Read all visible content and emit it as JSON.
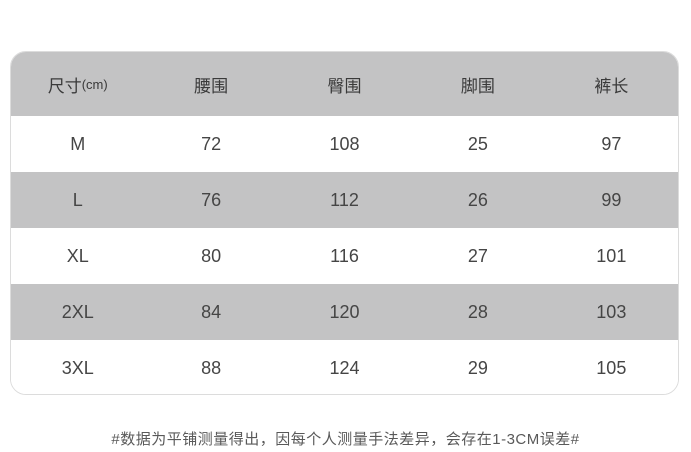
{
  "table": {
    "header": {
      "size_label": "尺寸",
      "size_unit": "(cm)",
      "cols": [
        "腰围",
        "臀围",
        "脚围",
        "裤长"
      ]
    },
    "rows": [
      {
        "size": "M",
        "waist": "72",
        "hip": "108",
        "leg": "25",
        "length": "97"
      },
      {
        "size": "L",
        "waist": "76",
        "hip": "112",
        "leg": "26",
        "length": "99"
      },
      {
        "size": "XL",
        "waist": "80",
        "hip": "116",
        "leg": "27",
        "length": "101"
      },
      {
        "size": "2XL",
        "waist": "84",
        "hip": "120",
        "leg": "28",
        "length": "103"
      },
      {
        "size": "3XL",
        "waist": "88",
        "hip": "124",
        "leg": "29",
        "length": "105"
      }
    ]
  },
  "note": "#数据为平铺测量得出，因每个人测量手法差异，会存在1-3CM误差#",
  "colors": {
    "header_bg": "#c3c3c4",
    "stripe_bg": "#c3c3c4",
    "row_bg": "#ffffff",
    "border": "#dcdcdc",
    "header_text": "#3a3a3a",
    "cell_text": "#454545",
    "note_text": "#595959"
  },
  "chart_data": {
    "type": "table",
    "title": "尺寸(cm) 服装尺码表",
    "columns": [
      "尺寸(cm)",
      "腰围",
      "臀围",
      "脚围",
      "裤长"
    ],
    "rows": [
      [
        "M",
        72,
        108,
        25,
        97
      ],
      [
        "L",
        76,
        112,
        26,
        99
      ],
      [
        "XL",
        80,
        116,
        27,
        101
      ],
      [
        "2XL",
        84,
        120,
        28,
        103
      ],
      [
        "3XL",
        88,
        124,
        29,
        105
      ]
    ],
    "annotation": "#数据为平铺测量得出，因每个人测量手法差异，会存在1-3CM误差#"
  }
}
